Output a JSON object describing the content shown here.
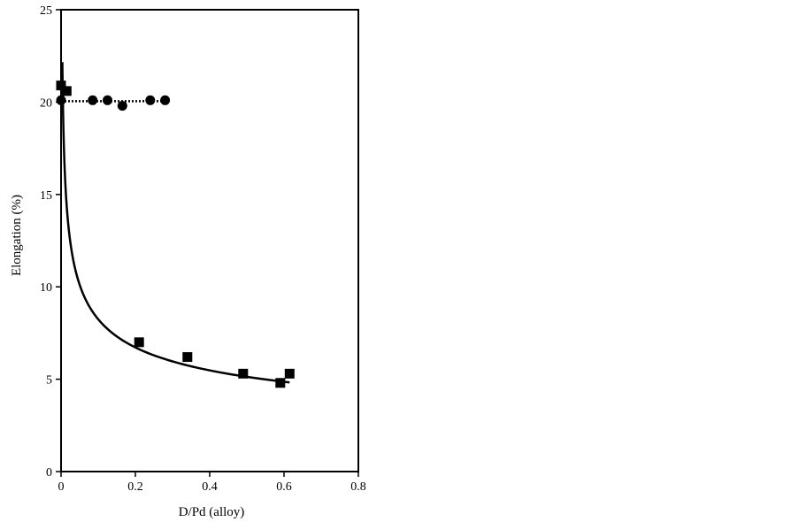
{
  "chart_data": {
    "type": "scatter",
    "title": "",
    "xlabel": "D/Pd (alloy)",
    "ylabel": "Elongation (%)",
    "xlim": [
      0,
      0.8
    ],
    "ylim": [
      0,
      25
    ],
    "x_ticks": [
      "0",
      "0.2",
      "0.4",
      "0.6",
      "0.8"
    ],
    "y_ticks": [
      "0",
      "5",
      "10",
      "15",
      "20",
      "25"
    ],
    "grid": false,
    "legend": "none",
    "series": [
      {
        "marker": "circle",
        "color": "#000000",
        "fit": "flat-dotted",
        "points": [
          {
            "x": 0.0,
            "y": 20.1
          },
          {
            "x": 0.085,
            "y": 20.1
          },
          {
            "x": 0.125,
            "y": 20.1
          },
          {
            "x": 0.165,
            "y": 19.8
          },
          {
            "x": 0.24,
            "y": 20.1
          },
          {
            "x": 0.28,
            "y": 20.1
          }
        ]
      },
      {
        "marker": "square",
        "color": "#000000",
        "fit": "solid-curve",
        "points": [
          {
            "x": 0.0,
            "y": 20.9
          },
          {
            "x": 0.015,
            "y": 20.6
          },
          {
            "x": 0.21,
            "y": 7.0
          },
          {
            "x": 0.34,
            "y": 6.2
          },
          {
            "x": 0.49,
            "y": 5.3
          },
          {
            "x": 0.59,
            "y": 4.8
          },
          {
            "x": 0.615,
            "y": 5.3
          }
        ]
      }
    ]
  }
}
